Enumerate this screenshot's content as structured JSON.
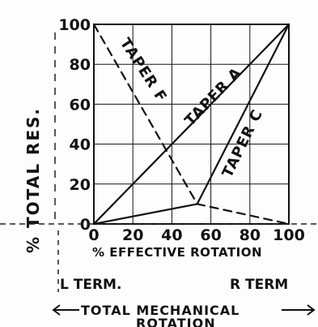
{
  "chart_data": {
    "type": "line",
    "xlabel": "% EFFECTIVE ROTATION",
    "ylabel": "% TOTAL RES.",
    "xlim": [
      0,
      100
    ],
    "ylim": [
      0,
      100
    ],
    "x_ticks": [
      "0",
      "20",
      "40",
      "60",
      "80",
      "100"
    ],
    "y_ticks": [
      "0",
      "20",
      "40",
      "60",
      "80",
      "100"
    ],
    "grid": true,
    "series": [
      {
        "name": "TAPER A",
        "style": "solid",
        "x": [
          0,
          100
        ],
        "y": [
          0,
          100
        ]
      },
      {
        "name": "TAPER C",
        "style": "solid",
        "x": [
          0,
          53,
          100
        ],
        "y": [
          0,
          10,
          100
        ]
      },
      {
        "name": "TAPER F",
        "style": "dashed",
        "x": [
          0,
          53,
          100
        ],
        "y": [
          100,
          10,
          0
        ]
      }
    ]
  },
  "annotations": {
    "left_term": "L TERM.",
    "right_term": "R TERM",
    "mechanical_rotation": "TOTAL MECHANICAL",
    "mechanical_rotation_2": "ROTATION"
  },
  "colors": {
    "ink": "#111111",
    "paper": "#fdfdfd"
  }
}
